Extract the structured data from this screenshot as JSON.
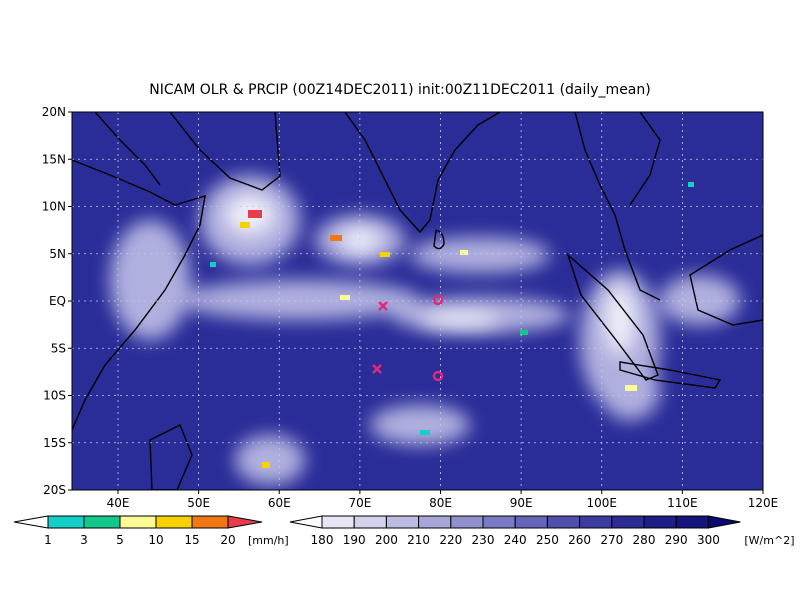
{
  "title": "NICAM OLR & PRCIP (00Z14DEC2011) init:00Z11DEC2011 (daily_mean)",
  "lat_labels": [
    "20N",
    "15N",
    "10N",
    "5N",
    "EQ",
    "5S",
    "10S",
    "15S",
    "20S"
  ],
  "lon_labels": [
    "40E",
    "50E",
    "60E",
    "70E",
    "80E",
    "90E",
    "100E",
    "110E",
    "120E"
  ],
  "precip_scale": {
    "labels": [
      "1",
      "3",
      "5",
      "10",
      "15",
      "20"
    ],
    "unit": "[mm/h]",
    "colors": [
      "#ffffff",
      "#12d0c8",
      "#14c88a",
      "#fafa96",
      "#f5d200",
      "#f07814",
      "#e83c4a"
    ]
  },
  "olr_scale": {
    "labels": [
      "180",
      "190",
      "200",
      "210",
      "220",
      "230",
      "240",
      "250",
      "260",
      "270",
      "280",
      "290",
      "300"
    ],
    "unit": "[W/m^2]",
    "colors": [
      "#ffffff",
      "#e6e6f5",
      "#d2d2ec",
      "#bcbce2",
      "#a6a6d8",
      "#9090ce",
      "#7a7ac4",
      "#6464b8",
      "#5050ac",
      "#3c3ca0",
      "#2c2c94",
      "#1e1e88",
      "#14147c",
      "#0a0a70"
    ]
  }
}
